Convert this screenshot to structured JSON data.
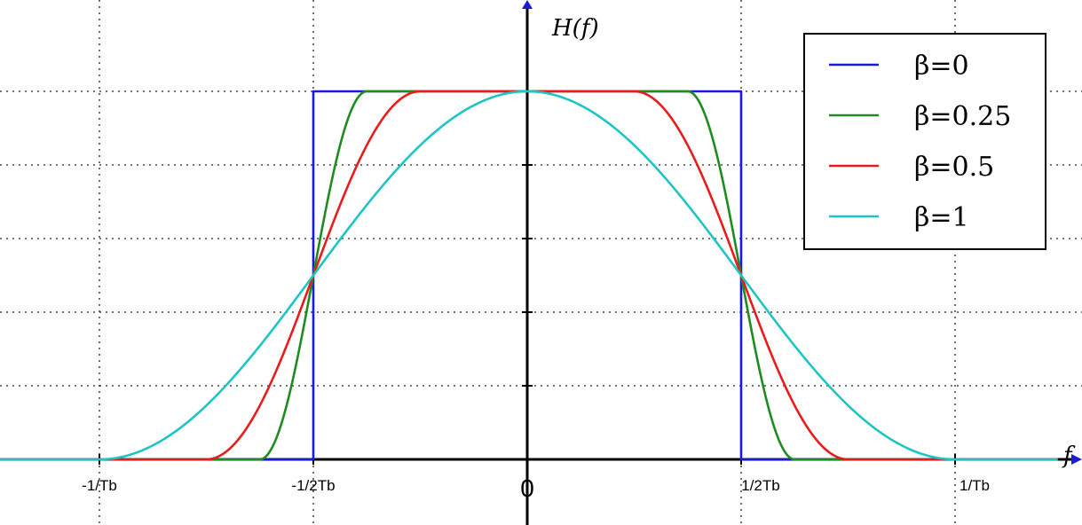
{
  "chart_data": {
    "type": "line",
    "title": "",
    "ylabel": "H(f)",
    "xlabel": "f",
    "xlim": [
      -1.24,
      1.24
    ],
    "ylim": [
      -0.09,
      1.25
    ],
    "x_ticks": [
      {
        "value": -1.0,
        "label": "-1/Tb"
      },
      {
        "value": -0.5,
        "label": "-1/2Tb"
      },
      {
        "value": 0.0,
        "label": "0"
      },
      {
        "value": 0.5,
        "label": "1/2Tb"
      },
      {
        "value": 1.0,
        "label": "1/Tb"
      }
    ],
    "y_grid": [
      0.2,
      0.4,
      0.6,
      0.8,
      1.0
    ],
    "grid": true,
    "legend_position": "top-right",
    "series": [
      {
        "name": "β=0",
        "beta": 0,
        "color": "#1a1adc"
      },
      {
        "name": "β=0.25",
        "beta": 0.25,
        "color": "#1f8c1f"
      },
      {
        "name": "β=0.5",
        "beta": 0.5,
        "color": "#e81c1c"
      },
      {
        "name": "β=1",
        "beta": 1,
        "color": "#1fc4c4"
      }
    ]
  }
}
